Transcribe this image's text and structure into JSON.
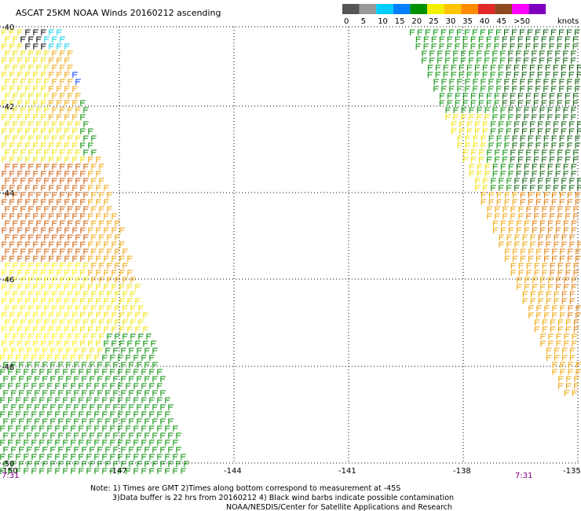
{
  "header": {
    "title": "ASCAT 25KM NOAA Winds 20160212 ascending"
  },
  "legend": {
    "unit": "knots",
    "bins": [
      {
        "label": "0",
        "color": "#555555"
      },
      {
        "label": "5",
        "color": "#999999"
      },
      {
        "label": "10",
        "color": "#00cdfa"
      },
      {
        "label": "15",
        "color": "#0080ff"
      },
      {
        "label": "20",
        "color": "#009000"
      },
      {
        "label": "25",
        "color": "#f0f000"
      },
      {
        "label": "30",
        "color": "#ffc400"
      },
      {
        "label": "35",
        "color": "#ff8c00"
      },
      {
        "label": "40",
        "color": "#e02828"
      },
      {
        "label": "45",
        "color": "#8c4a1e"
      },
      {
        "label": ">50",
        "color": "#ff00ff"
      },
      {
        "label": "",
        "color": "#8000c0"
      }
    ]
  },
  "map": {
    "lat_labels": [
      "-40",
      "-42",
      "-44",
      "-46",
      "-48",
      "-50"
    ],
    "lon_labels": [
      "-150",
      "-147",
      "-144",
      "-141",
      "-138",
      "-135"
    ],
    "time_left": "7:31",
    "time_right": "7:31",
    "colors": {
      "green": "#008c00",
      "dark_green": "#005a00",
      "yellow": "#f0e000",
      "light_yellow": "#fff000",
      "orange": "#f0a000",
      "dark_orange": "#e07800",
      "red_orange": "#d05a00",
      "cyan": "#00c8f0",
      "blue": "#0040ff",
      "black": "#000000",
      "gray": "#333333"
    }
  },
  "notes": {
    "line1": "Note: 1) Times are GMT 2)Times along bottom correspond to measurement at -45S",
    "line2": "3)Data buffer is 22 hrs from 20160212 4) Black wind barbs indicate possible contamination",
    "line3": "NOAA/NESDIS/Center for Satellite Applications and Research"
  }
}
